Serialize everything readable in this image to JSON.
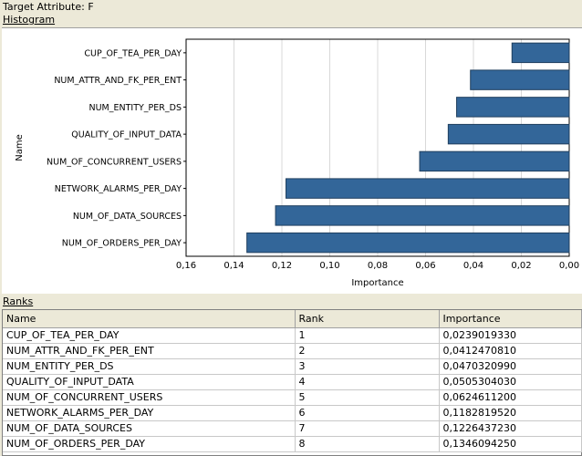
{
  "header": {
    "target_label": "Target Attribute:",
    "target_value": "F",
    "histogram_title": "Histogram",
    "ranks_title": "Ranks"
  },
  "colors": {
    "bar": "#336699",
    "bar_stroke": "#1f3f5f",
    "grid": "#d8d8d8"
  },
  "chart_data": {
    "type": "bar",
    "orientation": "horizontal",
    "x_reversed": true,
    "xlabel": "Importance",
    "ylabel": "Name",
    "xlim": [
      0,
      0.16
    ],
    "xticks": [
      0.16,
      0.14,
      0.12,
      0.1,
      0.08,
      0.06,
      0.04,
      0.02,
      0.0
    ],
    "xtick_labels": [
      "0,16",
      "0,14",
      "0,12",
      "0,10",
      "0,08",
      "0,06",
      "0,04",
      "0,02",
      "0,00"
    ],
    "grid": "vertical",
    "categories": [
      "CUP_OF_TEA_PER_DAY",
      "NUM_ATTR_AND_FK_PER_ENT",
      "NUM_ENTITY_PER_DS",
      "QUALITY_OF_INPUT_DATA",
      "NUM_OF_CONCURRENT_USERS",
      "NETWORK_ALARMS_PER_DAY",
      "NUM_OF_DATA_SOURCES",
      "NUM_OF_ORDERS_PER_DAY"
    ],
    "values": [
      0.023901933,
      0.041247081,
      0.047032099,
      0.050530403,
      0.06246112,
      0.118281952,
      0.122643723,
      0.134609425
    ]
  },
  "ranks": {
    "columns": [
      "Name",
      "Rank",
      "Importance"
    ],
    "rows": [
      [
        "CUP_OF_TEA_PER_DAY",
        "1",
        "0,0239019330"
      ],
      [
        "NUM_ATTR_AND_FK_PER_ENT",
        "2",
        "0,0412470810"
      ],
      [
        "NUM_ENTITY_PER_DS",
        "3",
        "0,0470320990"
      ],
      [
        "QUALITY_OF_INPUT_DATA",
        "4",
        "0,0505304030"
      ],
      [
        "NUM_OF_CONCURRENT_USERS",
        "5",
        "0,0624611200"
      ],
      [
        "NETWORK_ALARMS_PER_DAY",
        "6",
        "0,1182819520"
      ],
      [
        "NUM_OF_DATA_SOURCES",
        "7",
        "0,1226437230"
      ],
      [
        "NUM_OF_ORDERS_PER_DAY",
        "8",
        "0,1346094250"
      ]
    ]
  }
}
